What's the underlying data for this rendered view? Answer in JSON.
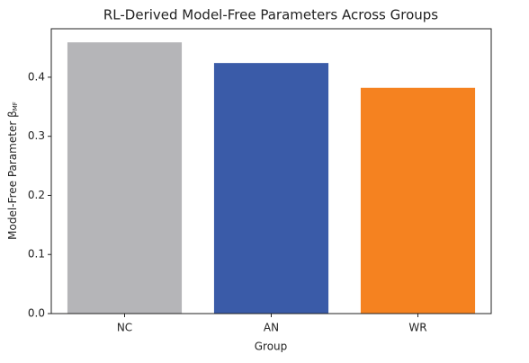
{
  "chart_data": {
    "type": "bar",
    "title": "RL-Derived Model-Free Parameters Across Groups",
    "xlabel": "Group",
    "ylabel": "Model-Free Parameter β",
    "ylabel_subscript": "MF",
    "categories": [
      "NC",
      "AN",
      "WR"
    ],
    "values": [
      0.459,
      0.424,
      0.382
    ],
    "colors": [
      "#b5b5b8",
      "#3a5ba8",
      "#f58220"
    ],
    "ylim": [
      0,
      0.482
    ],
    "yticks": [
      {
        "value": 0,
        "label": "0.0"
      },
      0.1,
      0.2,
      0.3,
      0.4
    ]
  }
}
